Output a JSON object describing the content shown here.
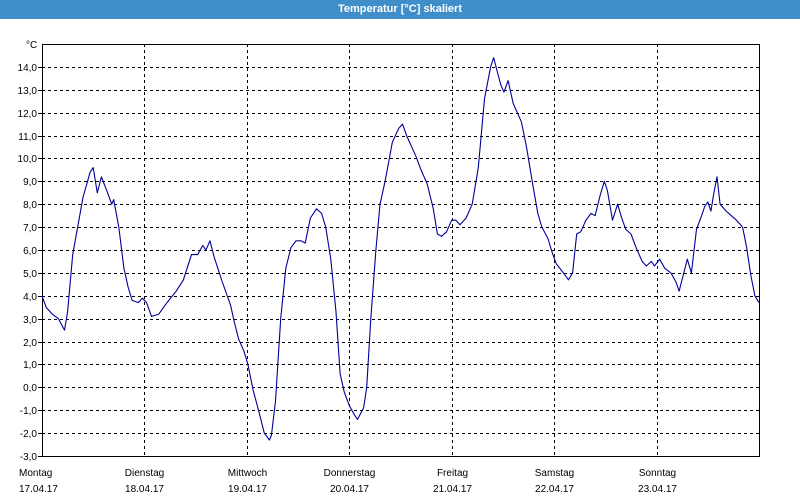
{
  "window": {
    "title": "Temperatur [°C] skaliert"
  },
  "colors": {
    "title_bar": "#3f8ec9",
    "series": "#000099",
    "grid": "#000000"
  },
  "chart_data": {
    "type": "line",
    "title": "Temperatur [°C] skaliert",
    "ylabel": "°C",
    "xlabel": "",
    "ylim": [
      -3.0,
      15.0
    ],
    "y_ticks": [
      "-3,0",
      "-2,0",
      "-1,0",
      "0,0",
      "1,0",
      "2,0",
      "3,0",
      "4,0",
      "5,0",
      "6,0",
      "7,0",
      "8,0",
      "9,0",
      "10,0",
      "11,0",
      "12,0",
      "13,0",
      "14,0"
    ],
    "x_unit": "days since Monday 17.04.17 00:00",
    "xlim": [
      0,
      7
    ],
    "x_ticks": [
      {
        "day": "Montag",
        "date": "17.04.17"
      },
      {
        "day": "Dienstag",
        "date": "18.04.17"
      },
      {
        "day": "Mittwoch",
        "date": "19.04.17"
      },
      {
        "day": "Donnerstag",
        "date": "20.04.17"
      },
      {
        "day": "Freitag",
        "date": "21.04.17"
      },
      {
        "day": "Samstag",
        "date": "22.04.17"
      },
      {
        "day": "Sonntag",
        "date": "23.04.17"
      }
    ],
    "grid": true,
    "grid_style": "dashed",
    "series": [
      {
        "points": [
          [
            0.0,
            4.0
          ],
          [
            0.04,
            3.5
          ],
          [
            0.1,
            3.2
          ],
          [
            0.16,
            3.0
          ],
          [
            0.22,
            2.5
          ],
          [
            0.25,
            3.3
          ],
          [
            0.3,
            5.8
          ],
          [
            0.4,
            8.3
          ],
          [
            0.47,
            9.4
          ],
          [
            0.5,
            9.6
          ],
          [
            0.54,
            8.5
          ],
          [
            0.58,
            9.2
          ],
          [
            0.64,
            8.5
          ],
          [
            0.68,
            8.0
          ],
          [
            0.7,
            8.2
          ],
          [
            0.75,
            7.0
          ],
          [
            0.8,
            5.2
          ],
          [
            0.84,
            4.4
          ],
          [
            0.88,
            3.8
          ],
          [
            0.94,
            3.7
          ],
          [
            0.98,
            3.9
          ],
          [
            1.02,
            3.7
          ],
          [
            1.07,
            3.1
          ],
          [
            1.14,
            3.2
          ],
          [
            1.22,
            3.7
          ],
          [
            1.31,
            4.2
          ],
          [
            1.38,
            4.7
          ],
          [
            1.46,
            5.8
          ],
          [
            1.52,
            5.8
          ],
          [
            1.57,
            6.2
          ],
          [
            1.6,
            6.0
          ],
          [
            1.64,
            6.4
          ],
          [
            1.68,
            5.7
          ],
          [
            1.76,
            4.6
          ],
          [
            1.84,
            3.6
          ],
          [
            1.88,
            2.8
          ],
          [
            1.92,
            2.1
          ],
          [
            1.97,
            1.6
          ],
          [
            2.01,
            1.0
          ],
          [
            2.06,
            -0.1
          ],
          [
            2.12,
            -1.1
          ],
          [
            2.17,
            -2.0
          ],
          [
            2.22,
            -2.3
          ],
          [
            2.24,
            -2.1
          ],
          [
            2.28,
            -0.6
          ],
          [
            2.33,
            3.0
          ],
          [
            2.38,
            5.2
          ],
          [
            2.43,
            6.1
          ],
          [
            2.48,
            6.4
          ],
          [
            2.53,
            6.4
          ],
          [
            2.57,
            6.3
          ],
          [
            2.62,
            7.4
          ],
          [
            2.68,
            7.8
          ],
          [
            2.73,
            7.6
          ],
          [
            2.77,
            7.0
          ],
          [
            2.82,
            5.6
          ],
          [
            2.87,
            3.3
          ],
          [
            2.91,
            0.6
          ],
          [
            2.95,
            -0.2
          ],
          [
            3.0,
            -0.8
          ],
          [
            3.05,
            -1.2
          ],
          [
            3.08,
            -1.4
          ],
          [
            3.14,
            -0.9
          ],
          [
            3.17,
            0.0
          ],
          [
            3.21,
            3.0
          ],
          [
            3.26,
            6.0
          ],
          [
            3.3,
            8.0
          ],
          [
            3.35,
            9.0
          ],
          [
            3.42,
            10.7
          ],
          [
            3.48,
            11.3
          ],
          [
            3.52,
            11.5
          ],
          [
            3.56,
            11.0
          ],
          [
            3.6,
            10.6
          ],
          [
            3.65,
            10.1
          ],
          [
            3.7,
            9.5
          ],
          [
            3.76,
            8.9
          ],
          [
            3.82,
            7.8
          ],
          [
            3.86,
            6.7
          ],
          [
            3.9,
            6.6
          ],
          [
            3.95,
            6.8
          ],
          [
            4.0,
            7.3
          ],
          [
            4.04,
            7.3
          ],
          [
            4.08,
            7.1
          ],
          [
            4.14,
            7.4
          ],
          [
            4.2,
            8.0
          ],
          [
            4.26,
            9.6
          ],
          [
            4.32,
            12.6
          ],
          [
            4.38,
            14.0
          ],
          [
            4.41,
            14.4
          ],
          [
            4.45,
            13.7
          ],
          [
            4.48,
            13.2
          ],
          [
            4.51,
            12.9
          ],
          [
            4.55,
            13.4
          ],
          [
            4.6,
            12.4
          ],
          [
            4.68,
            11.6
          ],
          [
            4.73,
            10.5
          ],
          [
            4.79,
            8.9
          ],
          [
            4.84,
            7.6
          ],
          [
            4.88,
            7.0
          ],
          [
            4.94,
            6.5
          ],
          [
            4.98,
            5.9
          ],
          [
            5.02,
            5.4
          ],
          [
            5.09,
            5.0
          ],
          [
            5.14,
            4.7
          ],
          [
            5.18,
            5.0
          ],
          [
            5.22,
            6.7
          ],
          [
            5.26,
            6.8
          ],
          [
            5.31,
            7.3
          ],
          [
            5.36,
            7.6
          ],
          [
            5.4,
            7.5
          ],
          [
            5.45,
            8.4
          ],
          [
            5.49,
            9.0
          ],
          [
            5.52,
            8.6
          ],
          [
            5.57,
            7.3
          ],
          [
            5.62,
            8.0
          ],
          [
            5.66,
            7.4
          ],
          [
            5.7,
            6.9
          ],
          [
            5.75,
            6.7
          ],
          [
            5.8,
            6.1
          ],
          [
            5.86,
            5.5
          ],
          [
            5.9,
            5.3
          ],
          [
            5.95,
            5.5
          ],
          [
            5.98,
            5.3
          ],
          [
            6.03,
            5.6
          ],
          [
            6.08,
            5.2
          ],
          [
            6.14,
            5.0
          ],
          [
            6.19,
            4.6
          ],
          [
            6.22,
            4.2
          ],
          [
            6.26,
            4.9
          ],
          [
            6.3,
            5.6
          ],
          [
            6.34,
            5.0
          ],
          [
            6.39,
            6.9
          ],
          [
            6.44,
            7.5
          ],
          [
            6.47,
            7.9
          ],
          [
            6.5,
            8.1
          ],
          [
            6.53,
            7.7
          ],
          [
            6.56,
            8.5
          ],
          [
            6.59,
            9.2
          ],
          [
            6.62,
            8.0
          ],
          [
            6.68,
            7.7
          ],
          [
            6.73,
            7.5
          ],
          [
            6.78,
            7.3
          ],
          [
            6.84,
            7.0
          ],
          [
            6.88,
            6.1
          ],
          [
            6.92,
            4.9
          ],
          [
            6.96,
            4.0
          ],
          [
            7.0,
            3.7
          ]
        ]
      }
    ]
  }
}
